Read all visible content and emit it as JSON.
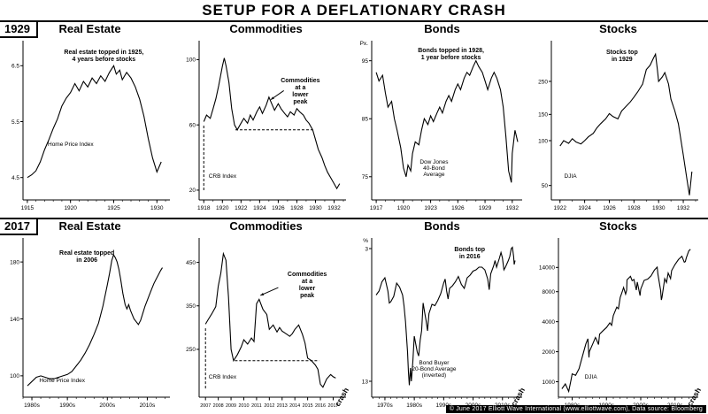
{
  "header": {
    "title": "SETUP FOR A DEFLATIONARY CRASH"
  },
  "rows": [
    {
      "era": "1929"
    },
    {
      "era": "2017"
    }
  ],
  "footer": {
    "credit": "© June 2017 Elliott Wave International (www.elliottwave.com), Data source: Bloomberg"
  },
  "colors": {
    "line": "#000000",
    "background": "#ffffff",
    "credit_bar": "#000000",
    "credit_text": "#ffffff"
  },
  "chart_data": [
    {
      "type": "line",
      "era": "1929",
      "title": "Real Estate",
      "annotation": {
        "lines": [
          "Real estate topped in 1925,",
          "4 years before stocks"
        ],
        "x": 0.58,
        "y": 0.1,
        "anchor": "middle"
      },
      "series_label": {
        "lines": [
          "Home Price Index"
        ],
        "x": 0.25,
        "y": 0.62,
        "anchor": "start"
      },
      "x": [
        1915,
        1915.5,
        1916,
        1916.5,
        1917,
        1917.5,
        1918,
        1918.5,
        1919,
        1919.5,
        1920,
        1920.5,
        1921,
        1921.5,
        1922,
        1922.5,
        1923,
        1923.5,
        1924,
        1924.5,
        1925,
        1925.3,
        1925.7,
        1926,
        1926.5,
        1927,
        1927.5,
        1928,
        1928.5,
        1929,
        1929.5,
        1930,
        1930.5
      ],
      "y": [
        4.5,
        4.55,
        4.62,
        4.78,
        5.0,
        5.18,
        5.38,
        5.55,
        5.78,
        5.92,
        6.02,
        6.18,
        6.05,
        6.22,
        6.12,
        6.28,
        6.18,
        6.32,
        6.22,
        6.38,
        6.5,
        6.35,
        6.42,
        6.25,
        6.38,
        6.28,
        6.12,
        5.9,
        5.6,
        5.2,
        4.85,
        4.6,
        4.78
      ],
      "xlim": [
        1914.5,
        1931.2
      ],
      "ylim": [
        4.1,
        6.9
      ],
      "log": false,
      "yticks": [
        6.5,
        5.5,
        4.5
      ],
      "xticks": [
        1915,
        1920,
        1925,
        1930
      ],
      "xtick_labels": [
        "1915",
        "1920",
        "1925",
        "1930"
      ],
      "minor_step": 1,
      "crash": false
    },
    {
      "type": "line",
      "era": "1929",
      "title": "Commodities",
      "annotation": {
        "lines": [
          "Commodities",
          "at a",
          "lower",
          "peak"
        ],
        "x": 0.7,
        "y": 0.26,
        "anchor": "middle"
      },
      "series_label": {
        "lines": [
          "CRB Index"
        ],
        "x": 0.16,
        "y": 0.8,
        "anchor": "start"
      },
      "x": [
        1918,
        1918.3,
        1918.7,
        1919,
        1919.3,
        1919.6,
        1920,
        1920.2,
        1920.4,
        1920.7,
        1921,
        1921.3,
        1921.6,
        1922,
        1922.3,
        1922.7,
        1923,
        1923.3,
        1923.7,
        1924,
        1924.3,
        1924.7,
        1925,
        1925.3,
        1925.6,
        1926,
        1926.3,
        1926.7,
        1927,
        1927.3,
        1927.7,
        1928,
        1928.3,
        1928.7,
        1929,
        1929.3,
        1929.7,
        1930,
        1930.3,
        1930.7,
        1931,
        1931.3,
        1931.7,
        1932,
        1932.3,
        1932.6
      ],
      "y": [
        62,
        66,
        64,
        70,
        76,
        84,
        96,
        101,
        96,
        86,
        70,
        60,
        57,
        61,
        64,
        61,
        66,
        63,
        68,
        71,
        67,
        72,
        77,
        73,
        69,
        73,
        70,
        67,
        65,
        68,
        66,
        70,
        68,
        66,
        63,
        61,
        57,
        51,
        45,
        40,
        35,
        31,
        27,
        24,
        21,
        24
      ],
      "xlim": [
        1917.5,
        1933
      ],
      "ylim": [
        14,
        110
      ],
      "log": false,
      "yticks": [
        100,
        60,
        20
      ],
      "xticks": [
        1918,
        1920,
        1922,
        1924,
        1926,
        1928,
        1930,
        1932
      ],
      "xtick_labels": [
        "1918",
        "1920",
        "1922",
        "1924",
        "1926",
        "1928",
        "1930",
        "1932"
      ],
      "minor_step": 1,
      "dashes": [
        {
          "x1": 1918,
          "y1": 20,
          "x2": 1918,
          "y2": 60
        },
        {
          "x1": 1921.4,
          "y1": 57,
          "x2": 1929.7,
          "y2": 57
        }
      ],
      "arrow": {
        "x1": 1926.6,
        "y1": 81,
        "x2": 1925.2,
        "y2": 75.5
      },
      "crash": false
    },
    {
      "type": "line",
      "era": "1929",
      "title": "Bonds",
      "annotation": {
        "lines": [
          "Bonds topped in 1928,",
          "1 year before stocks"
        ],
        "x": 0.55,
        "y": 0.09,
        "anchor": "middle"
      },
      "series_label": {
        "lines": [
          "Dow Jones",
          "40-Bond",
          "Average"
        ],
        "x": 0.45,
        "y": 0.72,
        "anchor": "middle"
      },
      "y_prefix": "Px.",
      "x": [
        1917,
        1917.3,
        1917.7,
        1918,
        1918.3,
        1918.7,
        1919,
        1919.3,
        1919.7,
        1920,
        1920.3,
        1920.5,
        1920.8,
        1921,
        1921.3,
        1921.7,
        1922,
        1922.3,
        1922.7,
        1923,
        1923.3,
        1923.7,
        1924,
        1924.3,
        1924.7,
        1925,
        1925.3,
        1925.7,
        1926,
        1926.3,
        1926.7,
        1927,
        1927.3,
        1927.7,
        1928,
        1928.3,
        1928.7,
        1929,
        1929.3,
        1929.7,
        1930,
        1930.3,
        1930.7,
        1931,
        1931.3,
        1931.6,
        1931.9,
        1932,
        1932.3,
        1932.6
      ],
      "y": [
        93,
        91.5,
        92.5,
        89.5,
        87,
        88,
        85,
        83,
        80,
        76.5,
        75,
        77,
        76,
        79,
        81,
        80.5,
        83,
        85,
        84,
        85.5,
        84.5,
        86,
        87,
        86,
        88,
        89,
        88,
        90,
        91,
        90,
        92,
        93,
        92.5,
        94,
        95,
        94,
        93,
        91.5,
        90,
        92,
        93,
        92,
        90,
        87,
        82,
        76,
        74,
        79,
        83,
        81
      ],
      "xlim": [
        1916.5,
        1932.8
      ],
      "ylim": [
        71,
        98
      ],
      "log": false,
      "yticks": [
        95,
        85,
        75
      ],
      "xticks": [
        1917,
        1920,
        1923,
        1926,
        1929,
        1932
      ],
      "xtick_labels": [
        "1917",
        "1920",
        "1923",
        "1926",
        "1929",
        "1932"
      ],
      "minor_step": 1,
      "crash": false
    },
    {
      "type": "line",
      "era": "1929",
      "title": "Stocks",
      "annotation": {
        "lines": [
          "Stocks top",
          "in 1929"
        ],
        "x": 0.52,
        "y": 0.1,
        "anchor": "middle"
      },
      "series_label": {
        "lines": [
          "DJIA"
        ],
        "x": 0.18,
        "y": 0.8,
        "anchor": "start"
      },
      "x": [
        1922,
        1922.3,
        1922.7,
        1923,
        1923.3,
        1923.7,
        1924,
        1924.3,
        1924.7,
        1925,
        1925.3,
        1925.7,
        1926,
        1926.3,
        1926.7,
        1927,
        1927.3,
        1927.7,
        1928,
        1928.3,
        1928.7,
        1929,
        1929.3,
        1929.6,
        1929.75,
        1929.9,
        1930,
        1930.3,
        1930.5,
        1930.8,
        1931,
        1931.3,
        1931.6,
        1932,
        1932.3,
        1932.5,
        1932.7
      ],
      "y": [
        92,
        100,
        96,
        103,
        98,
        95,
        100,
        106,
        112,
        122,
        130,
        140,
        152,
        145,
        140,
        158,
        168,
        182,
        196,
        212,
        240,
        300,
        320,
        360,
        381,
        300,
        250,
        268,
        286,
        240,
        190,
        160,
        130,
        80,
        55,
        43,
        62
      ],
      "xlim": [
        1921.3,
        1933
      ],
      "ylim": [
        40,
        450
      ],
      "log": true,
      "yticks": [
        250,
        150,
        100,
        50
      ],
      "xticks": [
        1922,
        1924,
        1926,
        1928,
        1930,
        1932
      ],
      "xtick_labels": [
        "1922",
        "1924",
        "1926",
        "1928",
        "1930",
        "1932"
      ],
      "minor_step": 1,
      "crash": false
    },
    {
      "type": "line",
      "era": "2017",
      "title": "Real Estate",
      "annotation": {
        "lines": [
          "Real estate topped",
          "in 2006"
        ],
        "x": 0.48,
        "y": 0.12,
        "anchor": "middle"
      },
      "series_label": {
        "lines": [
          "Home Price Index"
        ],
        "x": 0.2,
        "y": 0.84,
        "anchor": "start"
      },
      "x": [
        1987,
        1988,
        1989,
        1990,
        1991,
        1992,
        1993,
        1994,
        1995,
        1996,
        1997,
        1998,
        1999,
        2000,
        2001,
        2002,
        2003,
        2004,
        2005,
        2005.5,
        2006,
        2006.4,
        2006.8,
        2007.2,
        2007.6,
        2008,
        2008.5,
        2009,
        2009.4,
        2009.8,
        2010.2,
        2010.6,
        2011,
        2011.5,
        2012,
        2012.5,
        2013,
        2013.5,
        2014,
        2014.5,
        2015,
        2015.5,
        2016,
        2016.5,
        2017,
        2017.4
      ],
      "y": [
        93,
        96,
        99,
        100,
        99,
        98,
        98,
        99,
        100,
        101,
        103,
        107,
        111,
        116,
        122,
        129,
        137,
        149,
        164,
        172,
        181,
        185,
        183,
        180,
        175,
        168,
        158,
        150,
        147,
        150,
        146,
        143,
        140,
        138,
        136,
        139,
        144,
        149,
        153,
        157,
        161,
        165,
        168,
        171,
        174,
        176
      ],
      "xlim": [
        1986,
        2018.5
      ],
      "ylim": [
        85,
        195
      ],
      "log": false,
      "yticks": [
        180,
        140,
        100
      ],
      "xticks": [
        1988,
        1996,
        2005,
        2014
      ],
      "xtick_labels": [
        "1980s",
        "1990s",
        "2000s",
        "2010s"
      ],
      "minor_step": 2,
      "crash": false
    },
    {
      "type": "line",
      "era": "2017",
      "title": "Commodities",
      "annotation": {
        "lines": [
          "Commodities",
          "at a",
          "lower",
          "peak"
        ],
        "x": 0.74,
        "y": 0.24,
        "anchor": "middle"
      },
      "series_label": {
        "lines": [
          "CRB Index"
        ],
        "x": 0.16,
        "y": 0.82,
        "anchor": "start"
      },
      "x": [
        2007,
        2007.2,
        2007.5,
        2007.8,
        2008,
        2008.2,
        2008.4,
        2008.6,
        2008.8,
        2009,
        2009.2,
        2009.5,
        2009.8,
        2010,
        2010.3,
        2010.6,
        2010.8,
        2011,
        2011.2,
        2011.5,
        2011.8,
        2012,
        2012.3,
        2012.6,
        2012.8,
        2013,
        2013.3,
        2013.6,
        2013.8,
        2014,
        2014.3,
        2014.6,
        2014.8,
        2015,
        2015.3,
        2015.6,
        2015.8,
        2016,
        2016.2,
        2016.5,
        2016.8,
        2017,
        2017.2
      ],
      "y": [
        308,
        318,
        332,
        348,
        395,
        425,
        470,
        455,
        370,
        250,
        224,
        238,
        256,
        272,
        262,
        276,
        268,
        355,
        365,
        342,
        330,
        296,
        306,
        290,
        300,
        292,
        286,
        280,
        286,
        296,
        306,
        284,
        264,
        230,
        224,
        214,
        204,
        170,
        163,
        182,
        192,
        187,
        184
      ],
      "xlim": [
        2006.5,
        2017.8
      ],
      "ylim": [
        140,
        500
      ],
      "log": false,
      "yticks": [
        450,
        350,
        250
      ],
      "xticks": [
        2007,
        2008,
        2009,
        2010,
        2011,
        2012,
        2013,
        2014,
        2015,
        2016,
        2017
      ],
      "xtick_labels": [
        "2007",
        "2008",
        "2009",
        "2010",
        "2011",
        "2012",
        "2013",
        "2014",
        "2015",
        "2016",
        "2017"
      ],
      "dashes": [
        {
          "x1": 2007,
          "y1": 160,
          "x2": 2007,
          "y2": 300
        },
        {
          "x1": 2009.3,
          "y1": 224,
          "x2": 2015.9,
          "y2": 224
        }
      ],
      "arrow": {
        "x1": 2012.7,
        "y1": 392,
        "x2": 2011.3,
        "y2": 374
      },
      "crash": true,
      "crash_label": "crash"
    },
    {
      "type": "line",
      "era": "2017",
      "title": "Bonds",
      "annotation": {
        "lines": [
          "Bonds top",
          "in 2016"
        ],
        "x": 0.66,
        "y": 0.1,
        "anchor": "middle"
      },
      "series_label": {
        "lines": [
          "Bond Buyer",
          "20-Bond Average",
          "(inverted)"
        ],
        "x": 0.45,
        "y": 0.74,
        "anchor": "middle"
      },
      "y_prefix": "%",
      "x": [
        1970,
        1971,
        1972,
        1973,
        1974,
        1974.5,
        1975,
        1976,
        1977,
        1978,
        1979,
        1979.5,
        1980,
        1980.3,
        1980.7,
        1981,
        1981.3,
        1981.7,
        1982,
        1982.5,
        1983,
        1983.5,
        1984,
        1984.5,
        1985,
        1985.5,
        1986,
        1986.5,
        1987,
        1987.5,
        1988,
        1989,
        1990,
        1991,
        1992,
        1993,
        1993.5,
        1994,
        1994.5,
        1995,
        1996,
        1997,
        1998,
        1999,
        2000,
        2001,
        2002,
        2003,
        2004,
        2005,
        2006,
        2007,
        2008,
        2008.5,
        2009,
        2010,
        2010.5,
        2011,
        2012,
        2012.5,
        2013,
        2013.5,
        2014,
        2015,
        2015.5,
        2016,
        2016.4,
        2016.8,
        2017,
        2017.3
      ],
      "y": [
        6.5,
        6.2,
        5.5,
        5.2,
        6.2,
        7.1,
        7.0,
        6.6,
        5.6,
        5.9,
        6.5,
        7.3,
        8.5,
        9.5,
        10.8,
        12.3,
        13.3,
        12.0,
        13.0,
        11.5,
        9.6,
        10.2,
        10.8,
        11.1,
        9.9,
        9.2,
        7.1,
        7.8,
        8.4,
        9.2,
        7.9,
        7.2,
        7.3,
        6.9,
        6.4,
        5.6,
        5.3,
        6.2,
        6.8,
        6.0,
        5.8,
        5.5,
        5.1,
        5.7,
        6.0,
        5.2,
        5.0,
        4.7,
        4.6,
        4.4,
        4.4,
        4.6,
        5.3,
        6.1,
        4.9,
        4.3,
        3.9,
        4.4,
        3.7,
        3.3,
        3.7,
        4.6,
        4.4,
        3.9,
        3.6,
        3.0,
        2.9,
        3.6,
        4.2,
        3.9
      ],
      "xlim": [
        1968.5,
        2018.8
      ],
      "ylim": [
        14.2,
        2.4
      ],
      "log": false,
      "yticks": [
        3,
        13
      ],
      "xticks": [
        1973,
        1983,
        1993,
        2003,
        2013
      ],
      "xtick_labels": [
        "1970s",
        "1980s",
        "1990s",
        "2000s",
        "2010s"
      ],
      "minor_step": 2,
      "crash": true,
      "crash_label": "crash"
    },
    {
      "type": "line",
      "era": "2017",
      "title": "Stocks",
      "series_label": {
        "lines": [
          "DJIA"
        ],
        "x": 0.3,
        "y": 0.82,
        "anchor": "start"
      },
      "x": [
        1980,
        1981,
        1982,
        1982.7,
        1983,
        1984,
        1985,
        1986,
        1987,
        1987.6,
        1987.9,
        1988,
        1989,
        1989.8,
        1990,
        1990.7,
        1991,
        1992,
        1993,
        1994,
        1994.5,
        1995,
        1996,
        1996.5,
        1997,
        1997.7,
        1998,
        1998.6,
        1998.9,
        1999,
        2000,
        2000.5,
        2001,
        2001.7,
        2002,
        2002.8,
        2003,
        2004,
        2005,
        2006,
        2007,
        2007.8,
        2008,
        2008.8,
        2009,
        2009.2,
        2010,
        2010.5,
        2011,
        2011.7,
        2012,
        2013,
        2014,
        2015,
        2015.7,
        2016,
        2016.3,
        2017,
        2017.5
      ],
      "y": [
        850,
        950,
        800,
        1050,
        1200,
        1160,
        1350,
        1800,
        2400,
        2700,
        1750,
        2000,
        2400,
        2780,
        2700,
        2360,
        3000,
        3250,
        3500,
        3900,
        3680,
        4600,
        5600,
        5400,
        7000,
        8200,
        8800,
        7550,
        8300,
        10500,
        11400,
        10300,
        10600,
        8300,
        10000,
        7300,
        8500,
        10400,
        10700,
        11500,
        13200,
        14100,
        12000,
        8200,
        6600,
        7000,
        10800,
        9900,
        12300,
        10800,
        13000,
        15000,
        16800,
        18100,
        15800,
        16000,
        17500,
        20500,
        21300
      ],
      "xlim": [
        1979,
        2019
      ],
      "ylim": [
        700,
        26000
      ],
      "log": true,
      "yticks": [
        14000,
        8000,
        4000,
        2000,
        1000
      ],
      "xticks": [
        1983,
        1993,
        2003,
        2013
      ],
      "xtick_labels": [
        "1980s",
        "1990s",
        "2000s",
        "2010s"
      ],
      "minor_step": 2,
      "crash": true,
      "crash_label": "crash"
    }
  ]
}
